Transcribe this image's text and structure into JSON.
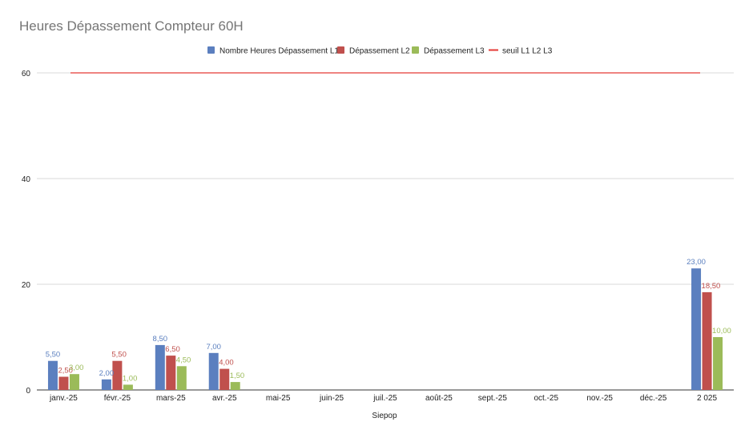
{
  "chart_data": {
    "type": "bar",
    "title": "Heures Dépassement Compteur 60H",
    "xlabel": "Siepop",
    "ylabel": "",
    "ylim": [
      0,
      62
    ],
    "yticks": [
      "0",
      "20",
      "40",
      "60"
    ],
    "ytick_values": [
      0,
      20,
      40,
      60
    ],
    "categories": [
      "janv.-25",
      "févr.-25",
      "mars-25",
      "avr.-25",
      "mai-25",
      "juin-25",
      "juil.-25",
      "août-25",
      "sept.-25",
      "oct.-25",
      "nov.-25",
      "déc.-25",
      "2 025"
    ],
    "series": [
      {
        "name": "Nombre Heures Dépassement L1",
        "color": "#5b7fbf",
        "values": [
          5.5,
          2.0,
          8.5,
          7.0,
          null,
          null,
          null,
          null,
          null,
          null,
          null,
          null,
          23.0
        ],
        "labels": [
          "5,50",
          "2,00",
          "8,50",
          "7,00",
          null,
          null,
          null,
          null,
          null,
          null,
          null,
          null,
          "23,00"
        ]
      },
      {
        "name": "Dépassement L2",
        "color": "#c0504d",
        "values": [
          2.5,
          5.5,
          6.5,
          4.0,
          null,
          null,
          null,
          null,
          null,
          null,
          null,
          null,
          18.5
        ],
        "labels": [
          "2,50",
          "5,50",
          "6,50",
          "4,00",
          null,
          null,
          null,
          null,
          null,
          null,
          null,
          null,
          "18,50"
        ]
      },
      {
        "name": "Dépassement L3",
        "color": "#9bbb59",
        "values": [
          3.0,
          1.0,
          4.5,
          1.5,
          null,
          null,
          null,
          null,
          null,
          null,
          null,
          null,
          10.0
        ],
        "labels": [
          "3,00",
          "1,00",
          "4,50",
          "1,50",
          null,
          null,
          null,
          null,
          null,
          null,
          null,
          null,
          "10,00"
        ]
      }
    ],
    "threshold": {
      "name": "seuil L1 L2 L3",
      "color": "#e53935",
      "value": 60
    },
    "legend_position": "top-center",
    "grid": true
  }
}
